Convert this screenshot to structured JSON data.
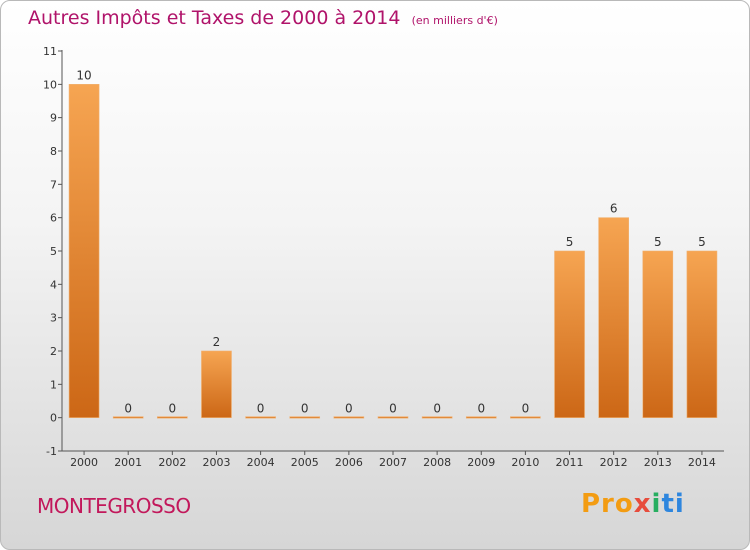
{
  "chart_data": {
    "type": "bar",
    "title": "Autres Impôts et Taxes de 2000 à 2014",
    "unit": "(en milliers d'€)",
    "categories": [
      "2000",
      "2001",
      "2002",
      "2003",
      "2004",
      "2005",
      "2006",
      "2007",
      "2008",
      "2009",
      "2010",
      "2011",
      "2012",
      "2013",
      "2014"
    ],
    "values": [
      10,
      0,
      0,
      2,
      0,
      0,
      0,
      0,
      0,
      0,
      0,
      5,
      6,
      5,
      5
    ],
    "y_ticks": [
      "-1",
      "0",
      "1",
      "2",
      "3",
      "4",
      "5",
      "6",
      "7",
      "8",
      "9",
      "10",
      "11"
    ],
    "ylim": [
      -1,
      11
    ],
    "grid": false,
    "bar_color": "#f5a04d"
  },
  "commune": "MONTEGROSSO",
  "logo": {
    "p1": "Pro",
    "p2": "x",
    "p3": "i",
    "p4": "ti"
  }
}
